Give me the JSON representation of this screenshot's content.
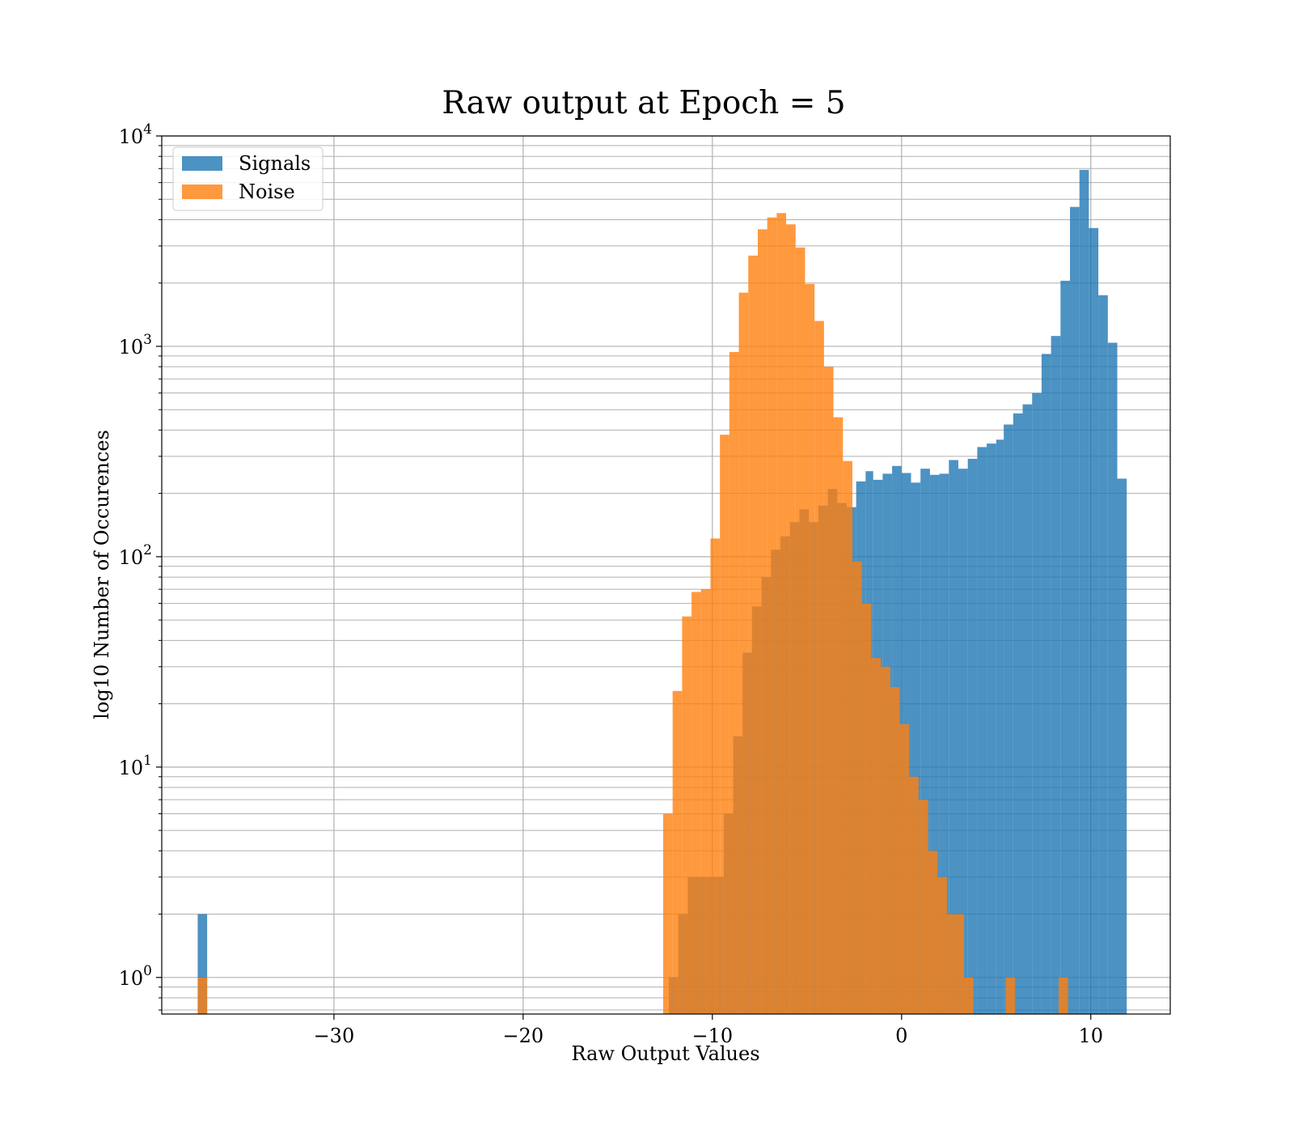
{
  "chart_data": {
    "type": "bar",
    "subtype": "overlaid-histogram",
    "title": "Raw output at Epoch = 5",
    "xlabel": "Raw Output Values",
    "ylabel": "log10 Number of Occurences",
    "xlim": [
      -39.1,
      14.2
    ],
    "ylim": [
      0.67,
      10000
    ],
    "yscale": "log",
    "grid": true,
    "legend_position": "top-left",
    "x_ticks": [
      {
        "value": -30,
        "label": "−30"
      },
      {
        "value": -20,
        "label": "−20"
      },
      {
        "value": -10,
        "label": "−10"
      },
      {
        "value": 0,
        "label": "0"
      },
      {
        "value": 10,
        "label": "10"
      }
    ],
    "y_ticks": [
      {
        "value": 1,
        "base": "10",
        "exp": "0"
      },
      {
        "value": 10,
        "base": "10",
        "exp": "1"
      },
      {
        "value": 100,
        "base": "10",
        "exp": "2"
      },
      {
        "value": 1000,
        "base": "10",
        "exp": "3"
      },
      {
        "value": 10000,
        "base": "10",
        "exp": "4"
      }
    ],
    "series": [
      {
        "name": "Signals",
        "color": "#1f77b4",
        "opacity": 0.8,
        "bins": [
          {
            "x0": -37.2,
            "x1": -36.7,
            "y": 2
          },
          {
            "x0": -12.3,
            "x1": -11.8,
            "y": 1
          },
          {
            "x0": -11.8,
            "x1": -11.3,
            "y": 2
          },
          {
            "x0": -11.3,
            "x1": -10.8,
            "y": 3
          },
          {
            "x0": -10.8,
            "x1": -10.3,
            "y": 3
          },
          {
            "x0": -10.3,
            "x1": -9.9,
            "y": 3
          },
          {
            "x0": -9.9,
            "x1": -9.4,
            "y": 3
          },
          {
            "x0": -9.4,
            "x1": -8.9,
            "y": 6
          },
          {
            "x0": -8.9,
            "x1": -8.4,
            "y": 14
          },
          {
            "x0": -8.4,
            "x1": -7.9,
            "y": 35
          },
          {
            "x0": -7.9,
            "x1": -7.4,
            "y": 58
          },
          {
            "x0": -7.4,
            "x1": -6.9,
            "y": 80
          },
          {
            "x0": -6.9,
            "x1": -6.4,
            "y": 108
          },
          {
            "x0": -6.4,
            "x1": -5.9,
            "y": 125
          },
          {
            "x0": -5.9,
            "x1": -5.4,
            "y": 146
          },
          {
            "x0": -5.4,
            "x1": -4.9,
            "y": 168
          },
          {
            "x0": -4.9,
            "x1": -4.4,
            "y": 146
          },
          {
            "x0": -4.4,
            "x1": -3.9,
            "y": 175
          },
          {
            "x0": -3.9,
            "x1": -3.4,
            "y": 210
          },
          {
            "x0": -3.4,
            "x1": -2.9,
            "y": 180
          },
          {
            "x0": -2.9,
            "x1": -2.4,
            "y": 172
          },
          {
            "x0": -2.4,
            "x1": -1.9,
            "y": 228
          },
          {
            "x0": -1.9,
            "x1": -1.5,
            "y": 255
          },
          {
            "x0": -1.5,
            "x1": -1.0,
            "y": 232
          },
          {
            "x0": -1.0,
            "x1": -0.5,
            "y": 248
          },
          {
            "x0": -0.5,
            "x1": 0.0,
            "y": 270
          },
          {
            "x0": 0.0,
            "x1": 0.5,
            "y": 250
          },
          {
            "x0": 0.5,
            "x1": 1.0,
            "y": 225
          },
          {
            "x0": 1.0,
            "x1": 1.5,
            "y": 262
          },
          {
            "x0": 1.5,
            "x1": 2.0,
            "y": 245
          },
          {
            "x0": 2.0,
            "x1": 2.5,
            "y": 248
          },
          {
            "x0": 2.5,
            "x1": 3.0,
            "y": 288
          },
          {
            "x0": 3.0,
            "x1": 3.5,
            "y": 262
          },
          {
            "x0": 3.5,
            "x1": 4.0,
            "y": 292
          },
          {
            "x0": 4.0,
            "x1": 4.5,
            "y": 332
          },
          {
            "x0": 4.5,
            "x1": 5.0,
            "y": 345
          },
          {
            "x0": 5.0,
            "x1": 5.4,
            "y": 360
          },
          {
            "x0": 5.4,
            "x1": 5.9,
            "y": 425
          },
          {
            "x0": 5.9,
            "x1": 6.4,
            "y": 480
          },
          {
            "x0": 6.4,
            "x1": 6.9,
            "y": 530
          },
          {
            "x0": 6.9,
            "x1": 7.4,
            "y": 600
          },
          {
            "x0": 7.4,
            "x1": 7.9,
            "y": 920
          },
          {
            "x0": 7.9,
            "x1": 8.4,
            "y": 1120
          },
          {
            "x0": 8.4,
            "x1": 8.9,
            "y": 2050
          },
          {
            "x0": 8.9,
            "x1": 9.4,
            "y": 4600
          },
          {
            "x0": 9.4,
            "x1": 9.9,
            "y": 6900
          },
          {
            "x0": 9.9,
            "x1": 10.4,
            "y": 3650
          },
          {
            "x0": 10.4,
            "x1": 10.9,
            "y": 1750
          },
          {
            "x0": 10.9,
            "x1": 11.4,
            "y": 1040
          },
          {
            "x0": 11.4,
            "x1": 11.9,
            "y": 235
          }
        ]
      },
      {
        "name": "Noise",
        "color": "#ff7f0e",
        "opacity": 0.8,
        "bins": [
          {
            "x0": -37.2,
            "x1": -36.7,
            "y": 1
          },
          {
            "x0": -12.6,
            "x1": -12.1,
            "y": 6
          },
          {
            "x0": -12.1,
            "x1": -11.6,
            "y": 23
          },
          {
            "x0": -11.6,
            "x1": -11.1,
            "y": 52
          },
          {
            "x0": -11.1,
            "x1": -10.6,
            "y": 68
          },
          {
            "x0": -10.6,
            "x1": -10.1,
            "y": 70
          },
          {
            "x0": -10.1,
            "x1": -9.6,
            "y": 122
          },
          {
            "x0": -9.6,
            "x1": -9.1,
            "y": 380
          },
          {
            "x0": -9.1,
            "x1": -8.6,
            "y": 940
          },
          {
            "x0": -8.6,
            "x1": -8.1,
            "y": 1800
          },
          {
            "x0": -8.1,
            "x1": -7.6,
            "y": 2700
          },
          {
            "x0": -7.6,
            "x1": -7.1,
            "y": 3600
          },
          {
            "x0": -7.1,
            "x1": -6.6,
            "y": 4100
          },
          {
            "x0": -6.6,
            "x1": -6.1,
            "y": 4300
          },
          {
            "x0": -6.1,
            "x1": -5.6,
            "y": 3800
          },
          {
            "x0": -5.6,
            "x1": -5.1,
            "y": 2950
          },
          {
            "x0": -5.1,
            "x1": -4.6,
            "y": 1980
          },
          {
            "x0": -4.6,
            "x1": -4.1,
            "y": 1320
          },
          {
            "x0": -4.1,
            "x1": -3.6,
            "y": 800
          },
          {
            "x0": -3.6,
            "x1": -3.1,
            "y": 460
          },
          {
            "x0": -3.1,
            "x1": -2.6,
            "y": 285
          },
          {
            "x0": -2.6,
            "x1": -2.1,
            "y": 95
          },
          {
            "x0": -2.1,
            "x1": -1.6,
            "y": 60
          },
          {
            "x0": -1.6,
            "x1": -1.1,
            "y": 33
          },
          {
            "x0": -1.1,
            "x1": -0.6,
            "y": 30
          },
          {
            "x0": -0.6,
            "x1": -0.1,
            "y": 24
          },
          {
            "x0": -0.1,
            "x1": 0.4,
            "y": 16
          },
          {
            "x0": 0.4,
            "x1": 0.9,
            "y": 9
          },
          {
            "x0": 0.9,
            "x1": 1.4,
            "y": 7
          },
          {
            "x0": 1.4,
            "x1": 1.9,
            "y": 4
          },
          {
            "x0": 1.9,
            "x1": 2.4,
            "y": 3
          },
          {
            "x0": 2.4,
            "x1": 2.9,
            "y": 2
          },
          {
            "x0": 2.9,
            "x1": 3.3,
            "y": 2
          },
          {
            "x0": 3.3,
            "x1": 3.8,
            "y": 1
          },
          {
            "x0": 5.5,
            "x1": 6.0,
            "y": 1
          },
          {
            "x0": 8.3,
            "x1": 8.8,
            "y": 1
          }
        ]
      }
    ]
  }
}
